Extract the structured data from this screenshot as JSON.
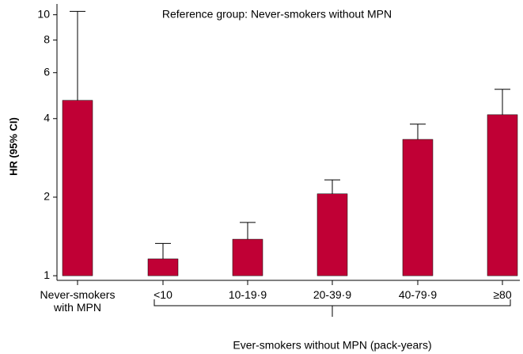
{
  "chart_data": {
    "type": "bar",
    "annotation": "Reference group: Never-smokers without MPN",
    "ylabel": "HR (95% CI)",
    "group_label": "Ever-smokers without MPN (pack-years)",
    "categories": [
      "Never-smokers with MPN",
      "<10",
      "10-19·9",
      "20-39·9",
      "40-79·9",
      "≥80"
    ],
    "values": [
      4.7,
      1.16,
      1.38,
      2.06,
      3.33,
      4.14
    ],
    "upper": [
      10.3,
      1.33,
      1.6,
      2.33,
      3.81,
      5.18
    ],
    "color": "#c00035",
    "log_y": true,
    "ylim": [
      0.96,
      11
    ],
    "yticks": [
      1,
      2,
      4,
      6,
      8,
      10
    ]
  }
}
